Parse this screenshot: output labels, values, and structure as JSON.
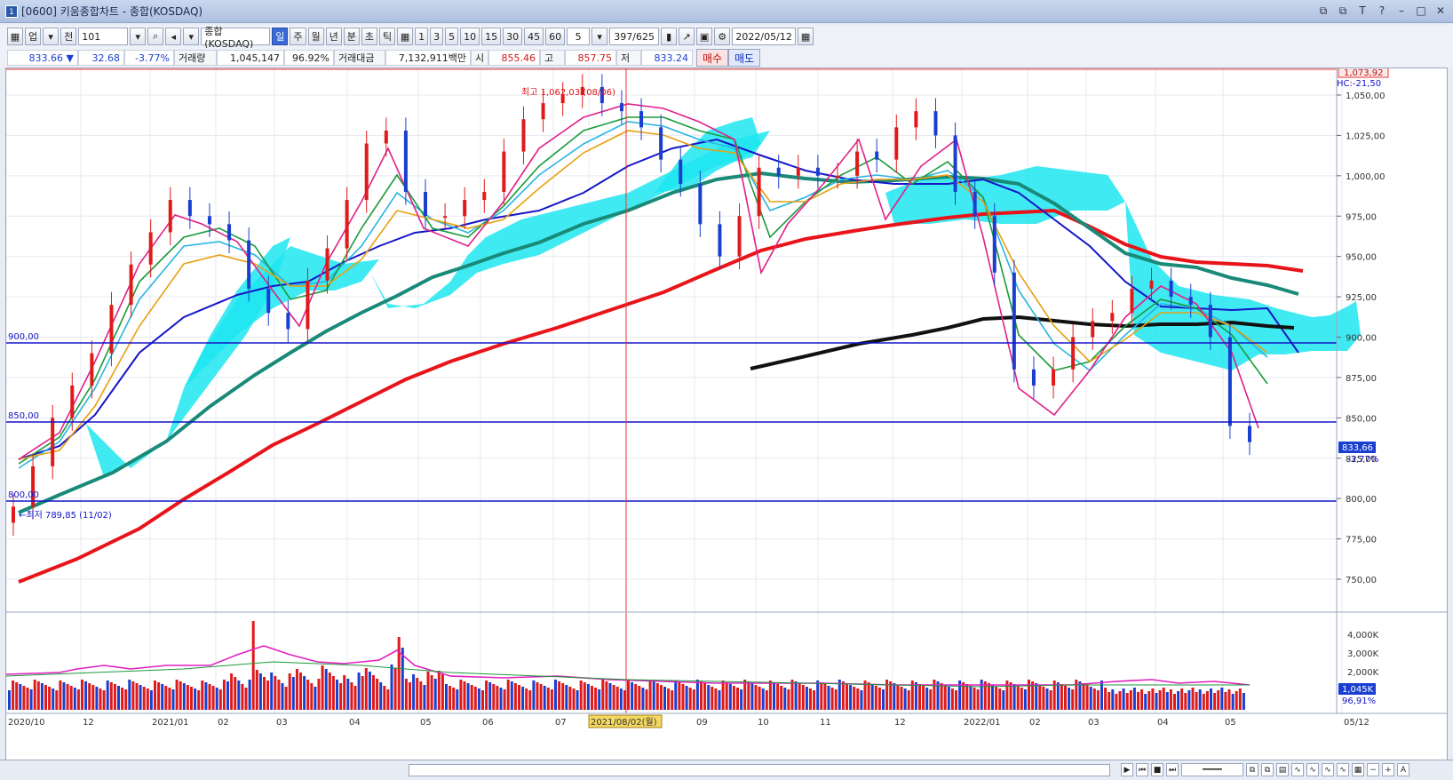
{
  "window": {
    "title": "[0600] 키움종합차트 - 종합(KOSDAQ)",
    "app_icon": "1",
    "buttons": [
      "⧉",
      "⧉",
      "T",
      "?",
      "–",
      "□",
      "✕"
    ]
  },
  "toolbar": {
    "market": "업",
    "prev": "전",
    "code": "101",
    "name": "종합(KOSDAQ)",
    "periods": [
      "일",
      "주",
      "월",
      "년",
      "분",
      "초",
      "틱"
    ],
    "active_period": "일",
    "intervals": [
      "1",
      "3",
      "5",
      "10",
      "15",
      "30",
      "45",
      "60"
    ],
    "count": "5",
    "range": "397/625",
    "date": "2022/05/12"
  },
  "quote": {
    "price": "833.66 ▼",
    "change": "32.68",
    "change_pct": "-3.77%",
    "vol_label": "거래량",
    "volume": "1,045,147",
    "vol_pct": "96.92%",
    "amt_label": "거래대금",
    "amount": "7,132,911백만",
    "open_label": "시",
    "open": "855.46",
    "high_label": "고",
    "high": "857.75",
    "low_label": "저",
    "low": "833.24",
    "buy": "매수",
    "sell": "매도"
  },
  "chart_data": {
    "type": "candlestick",
    "price_axis": {
      "ticks": [
        "1,050,00",
        "1,025,00",
        "1,000,00",
        "975,00",
        "950,00",
        "925,00",
        "900,00",
        "875,00",
        "850,00",
        "825,00",
        "800,00",
        "775,00",
        "750,00"
      ],
      "ylim": [
        735,
        1075
      ]
    },
    "top_label": "1,073,92",
    "hc_label": "HC:-21,50",
    "current_label": "833,66",
    "current_pct": "-3,77%",
    "hlines": [
      {
        "label": "900,00",
        "y": 900
      },
      {
        "label": "850,00",
        "y": 850
      },
      {
        "label": "800,00",
        "y": 800
      }
    ],
    "annotations": {
      "high": "최고 1,062,03 (08/06)",
      "low": "←최저 789,85 (11/02)"
    },
    "x_labels": [
      "2020/10",
      "12",
      "2021/01",
      "02",
      "03",
      "04",
      "05",
      "06",
      "07",
      "2021/08/02(월)",
      "09",
      "10",
      "11",
      "12",
      "2022/01",
      "02",
      "03",
      "04",
      "05",
      "05/12"
    ],
    "volume_axis": {
      "ticks": [
        "4,000K",
        "3,000K",
        "2,000K"
      ],
      "current": "1,045K",
      "pct": "96,91%"
    },
    "series": [
      {
        "name": "close",
        "color": "#d22020",
        "values": [
          795,
          820,
          850,
          870,
          890,
          920,
          945,
          965,
          985,
          975,
          970,
          960,
          930,
          915,
          905,
          935,
          955,
          985,
          1020,
          1028,
          990,
          975,
          975,
          985,
          990,
          1015,
          1035,
          1045,
          1050,
          1055,
          1045,
          1040,
          1030,
          1010,
          995,
          970,
          950,
          975,
          1005,
          1000,
          1005,
          1000,
          1000,
          1015,
          1010,
          1030,
          1040,
          1025,
          990,
          975,
          940,
          880,
          870,
          880,
          900,
          910,
          915,
          930,
          935,
          925,
          920,
          900,
          845,
          835
        ]
      }
    ]
  }
}
